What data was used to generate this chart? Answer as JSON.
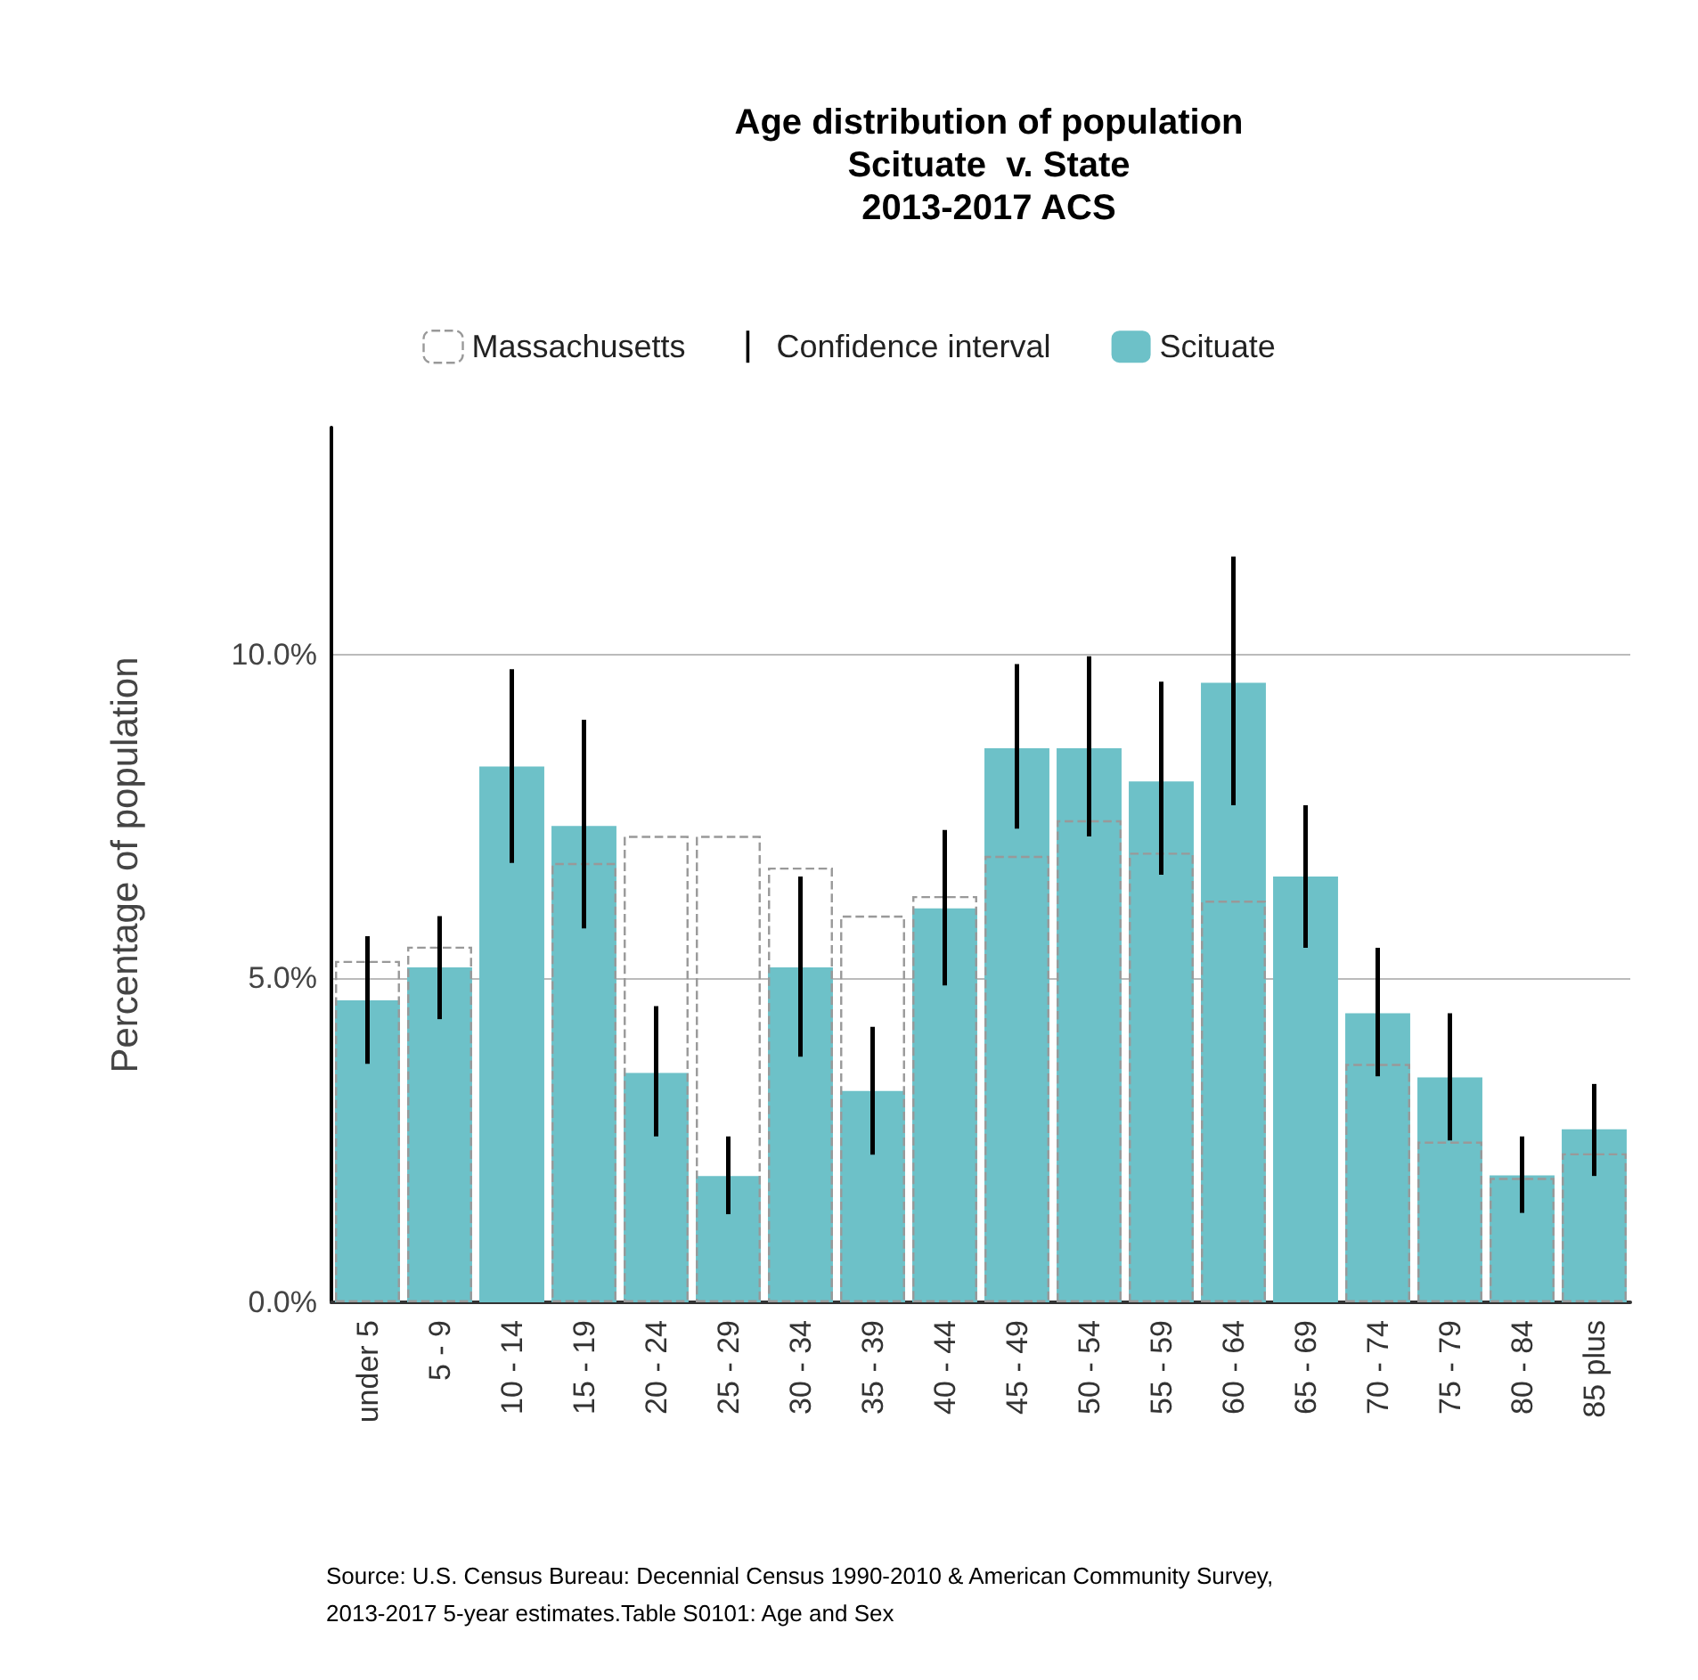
{
  "chart_data": {
    "type": "bar",
    "title": "Age distribution of population\nScituate  v. State\n2013-2017 ACS",
    "categories": [
      "under 5",
      "5 - 9",
      "10 - 14",
      "15 - 19",
      "20 - 24",
      "25 - 29",
      "30 - 34",
      "35 - 39",
      "40 - 44",
      "45 - 49",
      "50 - 54",
      "55 - 59",
      "60 - 64",
      "65 - 69",
      "70 - 74",
      "75 - 79",
      "80 - 84",
      "85 plus"
    ],
    "series": [
      {
        "name": "Scituate",
        "color": "#6dc1c8",
        "values": [
          4.66,
          5.17,
          8.27,
          7.35,
          3.54,
          1.95,
          5.17,
          3.26,
          6.08,
          8.55,
          8.55,
          8.04,
          9.56,
          6.57,
          4.46,
          3.47,
          1.96,
          2.67
        ],
        "errors": [
          [
            3.68,
            5.65
          ],
          [
            4.37,
            5.96
          ],
          [
            6.78,
            9.77
          ],
          [
            5.77,
            8.99
          ],
          [
            2.56,
            4.57
          ],
          [
            1.36,
            2.56
          ],
          [
            3.79,
            6.57
          ],
          [
            2.28,
            4.25
          ],
          [
            4.89,
            7.29
          ],
          [
            7.31,
            9.85
          ],
          [
            7.19,
            9.97
          ],
          [
            6.6,
            9.58
          ],
          [
            7.67,
            11.51
          ],
          [
            5.47,
            7.67
          ],
          [
            3.49,
            5.47
          ],
          [
            2.5,
            4.46
          ],
          [
            1.38,
            2.56
          ],
          [
            1.95,
            3.37
          ]
        ]
      },
      {
        "name": "Massachusetts",
        "color": "#999999",
        "line_style": "dashed",
        "values": [
          5.27,
          5.49,
          null,
          6.78,
          7.2,
          7.2,
          6.71,
          5.97,
          6.27,
          6.89,
          7.44,
          6.94,
          6.2,
          null,
          3.68,
          2.48,
          1.92,
          2.3
        ]
      }
    ],
    "ylabel": "Percentage of population",
    "ylim": [
      0,
      13.5
    ],
    "yticks": [
      {
        "value": 0,
        "label": "0.0%"
      },
      {
        "value": 5,
        "label": "5.0%"
      },
      {
        "value": 10,
        "label": "10.0%"
      }
    ],
    "grid": "y",
    "legend": "top",
    "annotations": [
      "Confidence interval",
      "Source: U.S. Census Bureau: Decennial Census 1990-2010 & American Community Survey, 2013-2017 5-year estimates.Table S0101: Age and Sex"
    ]
  }
}
